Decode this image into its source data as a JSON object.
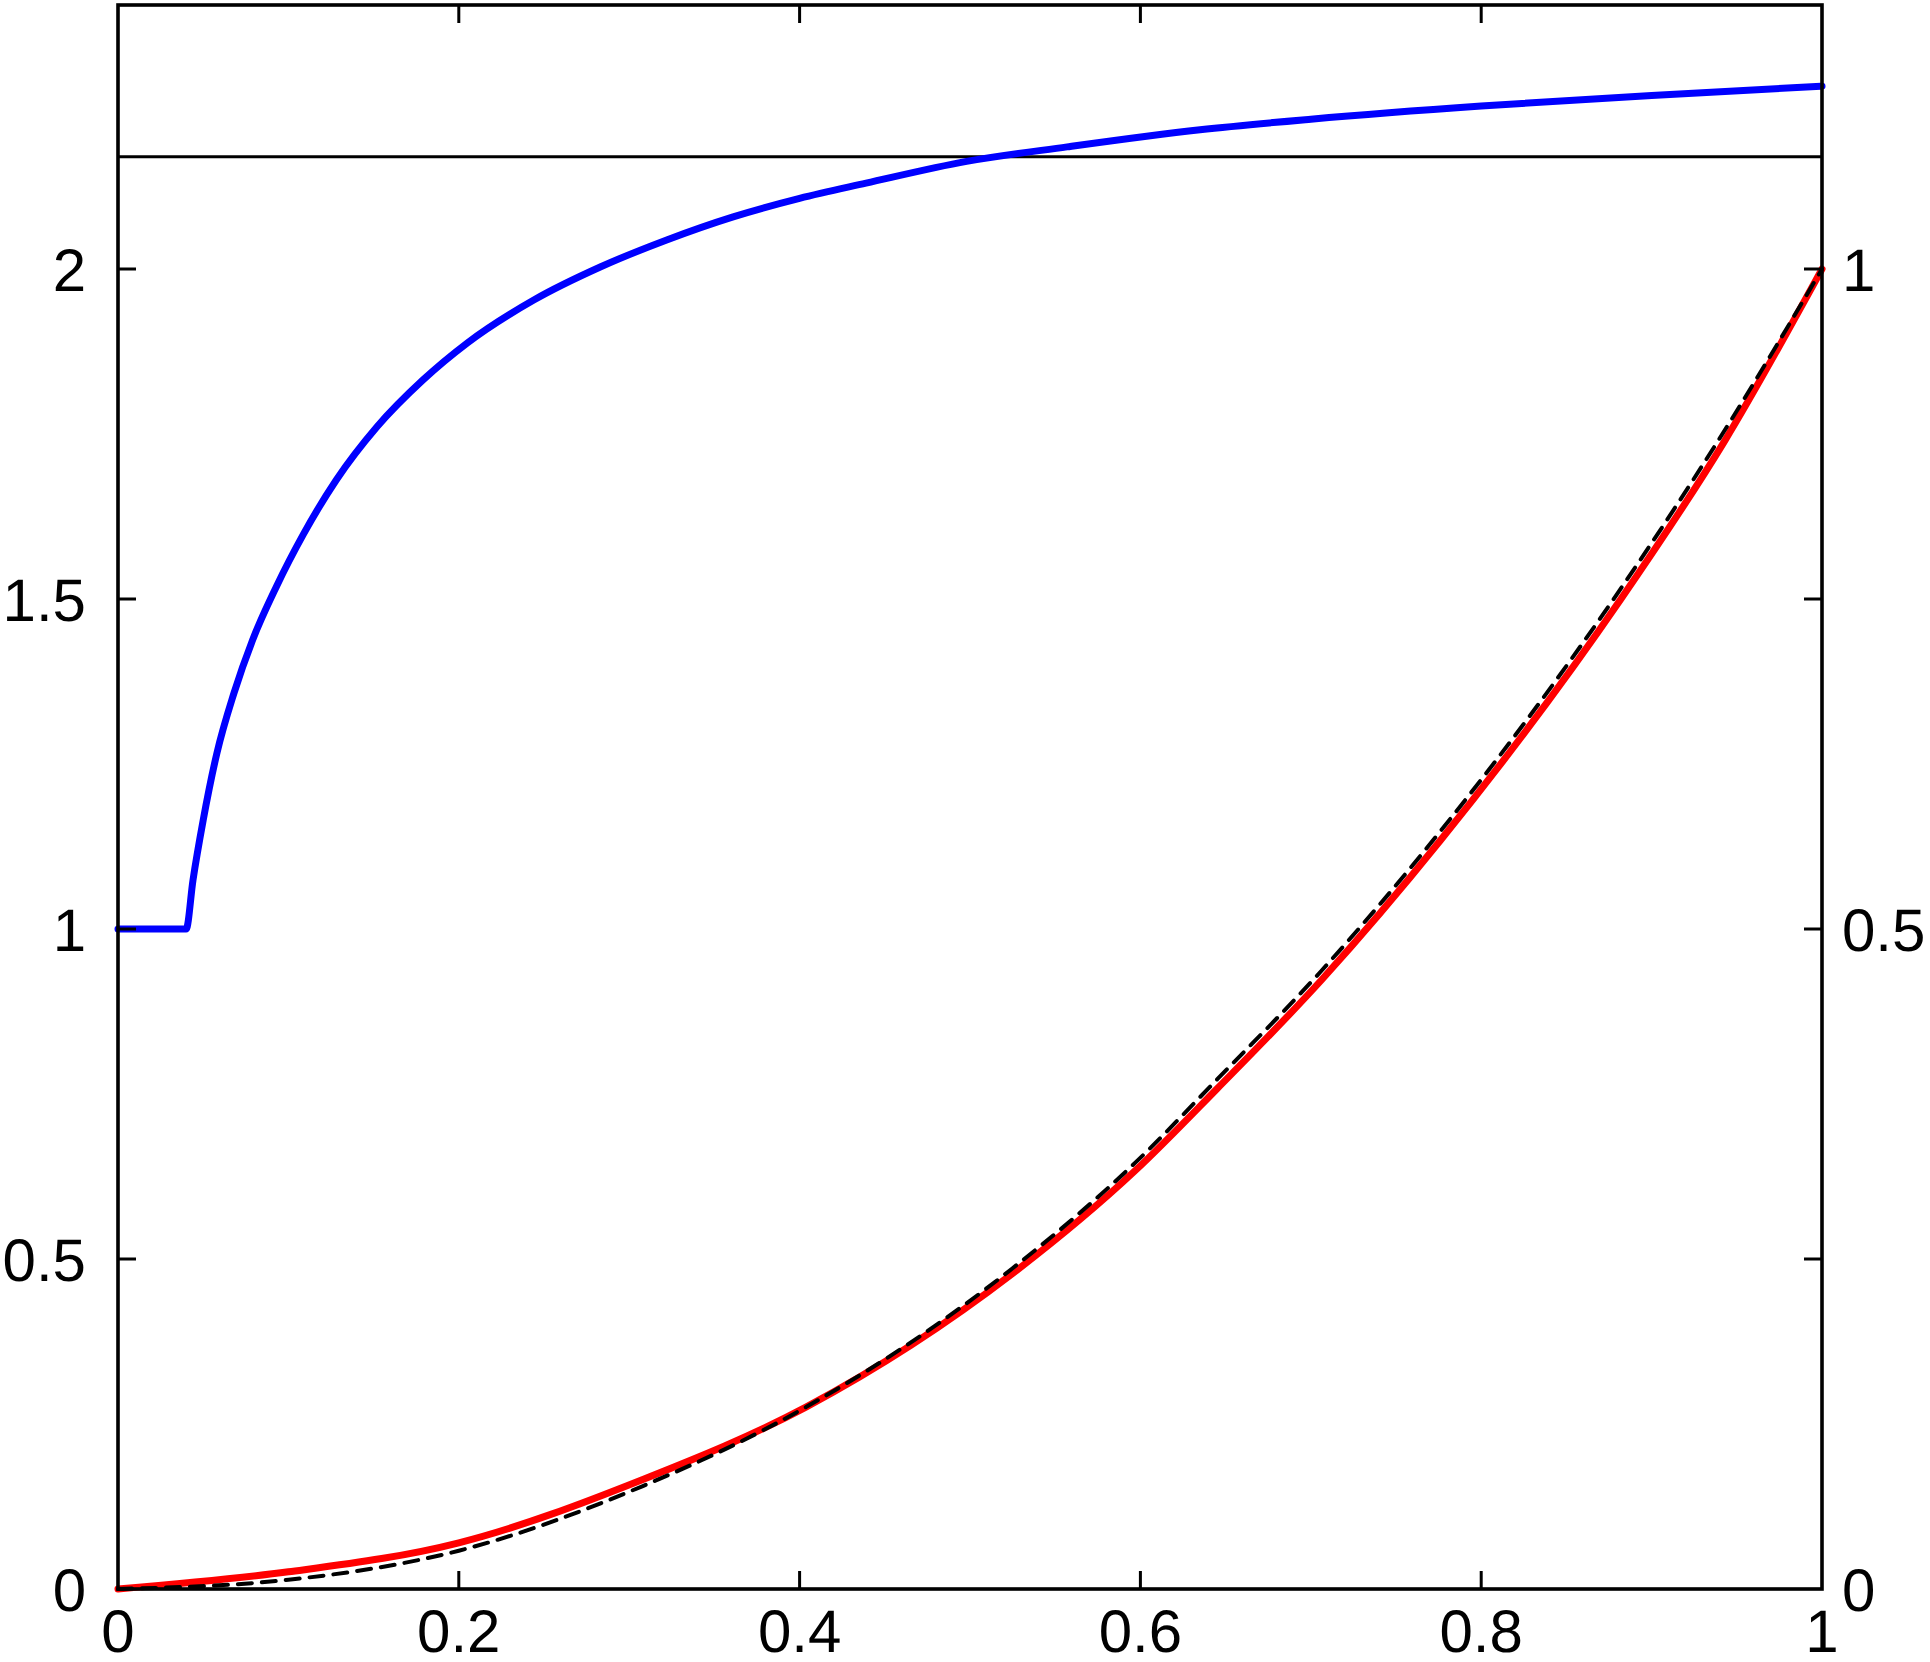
{
  "chart_data": {
    "type": "line",
    "xlim": [
      0,
      1
    ],
    "xticks": [
      0,
      0.2,
      0.4,
      0.6,
      0.8,
      1
    ],
    "ylim": [
      0,
      2.4
    ],
    "yticks": [
      0,
      0.5,
      1,
      1.5,
      2
    ],
    "y2lim": [
      0,
      1.2
    ],
    "y2ticks": [
      0,
      {
        "value": 0.25,
        "label": null
      },
      0.5,
      {
        "value": 0.75,
        "label": null
      },
      1
    ],
    "ref_lines": [
      {
        "axis": "y",
        "value": 2.17,
        "color": "#000000"
      }
    ],
    "series": [
      {
        "color": "#0000ff",
        "x": [
          0,
          0.04,
          0.044,
          0.05,
          0.058,
          0.068,
          0.079,
          0.093,
          0.109,
          0.128,
          0.152,
          0.179,
          0.205,
          0.244,
          0.283,
          0.322,
          0.361,
          0.4,
          0.439,
          0.498,
          0.557,
          0.635,
          0.7,
          0.8,
          0.9,
          1
        ],
        "values": [
          1,
          1,
          1.074,
          1.165,
          1.266,
          1.357,
          1.438,
          1.519,
          1.599,
          1.68,
          1.761,
          1.832,
          1.888,
          1.953,
          2.003,
          2.044,
          2.079,
          2.107,
          2.13,
          2.163,
          2.185,
          2.211,
          2.227,
          2.247,
          2.263,
          2.277
        ]
      },
      {
        "color": "#ff0000",
        "axis": "y2",
        "x": [
          0,
          0.1,
          0.2,
          0.308,
          0.404,
          0.525,
          0.597,
          0.645,
          0.706,
          0.776,
          0.882,
          0.943,
          1
        ],
        "values": [
          0,
          0.013,
          0.035,
          0.083,
          0.138,
          0.239,
          0.317,
          0.379,
          0.461,
          0.567,
          0.75,
          0.87,
          1
        ]
      },
      {
        "color": "#000000",
        "axis": "y2",
        "line_style": "dashed",
        "x": [
          0,
          0.1,
          0.2,
          0.308,
          0.404,
          0.525,
          0.597,
          0.645,
          0.706,
          0.776,
          0.882,
          0.943,
          1
        ],
        "values": [
          0,
          0.007,
          0.029,
          0.078,
          0.138,
          0.243,
          0.323,
          0.386,
          0.468,
          0.574,
          0.758,
          0.878,
          1
        ]
      }
    ]
  }
}
